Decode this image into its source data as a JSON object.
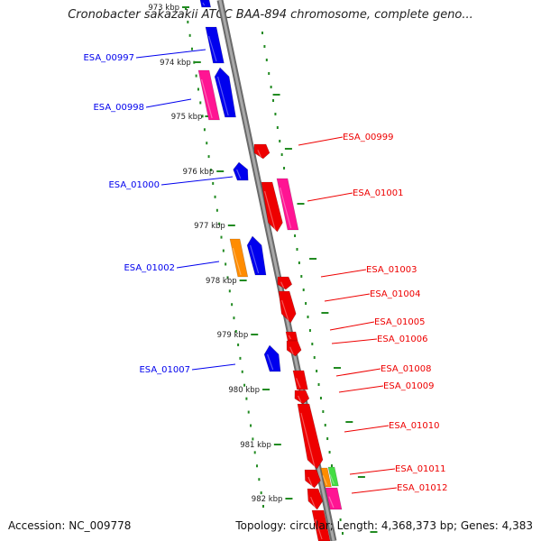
{
  "header": {
    "title": "Cronobacter sakazakii ATCC BAA-894 chromosome, complete geno..."
  },
  "footer": {
    "accession": "Accession: NC_009778",
    "summary": "Topology: circular; Length: 4,368,373 bp; Genes: 4,383"
  },
  "scale": {
    "labels": [
      "973 kbp",
      "974 kbp",
      "975 kbp",
      "976 kbp",
      "977 kbp",
      "978 kbp",
      "979 kbp",
      "980 kbp",
      "981 kbp",
      "982 kbp"
    ]
  },
  "genes": [
    {
      "name": "ESA_00997",
      "strand": "reverse",
      "color": "#0000ee"
    },
    {
      "name": "ESA_00998",
      "strand": "reverse",
      "color": "#0000ee"
    },
    {
      "name": "ESA_00999",
      "strand": "forward",
      "color": "#ee0000"
    },
    {
      "name": "ESA_01000",
      "strand": "reverse",
      "color": "#0000ee"
    },
    {
      "name": "ESA_01001",
      "strand": "forward",
      "color": "#ee0000"
    },
    {
      "name": "ESA_01002",
      "strand": "reverse",
      "color": "#0000ee"
    },
    {
      "name": "ESA_01003",
      "strand": "forward",
      "color": "#ee0000"
    },
    {
      "name": "ESA_01004",
      "strand": "forward",
      "color": "#ee0000"
    },
    {
      "name": "ESA_01005",
      "strand": "forward",
      "color": "#ee0000"
    },
    {
      "name": "ESA_01006",
      "strand": "forward",
      "color": "#ee0000"
    },
    {
      "name": "ESA_01007",
      "strand": "reverse",
      "color": "#0000ee"
    },
    {
      "name": "ESA_01008",
      "strand": "forward",
      "color": "#ee0000"
    },
    {
      "name": "ESA_01009",
      "strand": "forward",
      "color": "#ee0000"
    },
    {
      "name": "ESA_01010",
      "strand": "forward",
      "color": "#ee0000"
    },
    {
      "name": "ESA_01011",
      "strand": "forward",
      "color": "#ee0000"
    },
    {
      "name": "ESA_01012",
      "strand": "forward",
      "color": "#ee0000"
    }
  ],
  "colors": {
    "backbone": "#8c8c8c",
    "scale_dots": "#228b22",
    "forward_cds": "#ee0000",
    "reverse_cds": "#0000ee",
    "rna": "#ff1493",
    "orange_feature": "#ff8c00",
    "green_feature": "#44dd44"
  }
}
